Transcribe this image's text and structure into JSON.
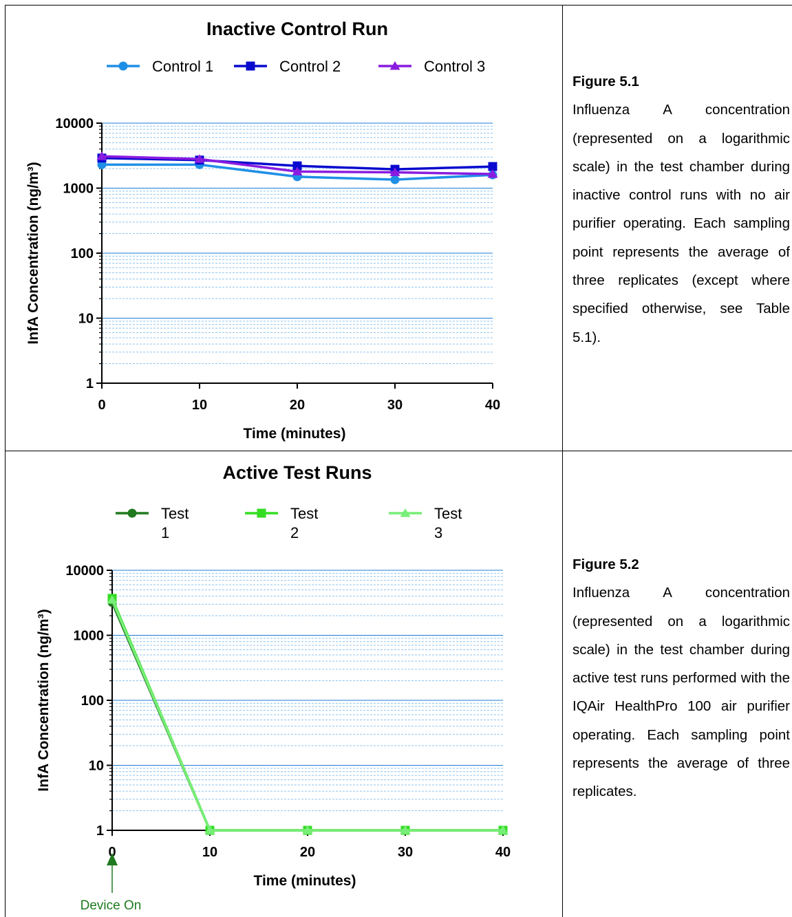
{
  "colors": {
    "control_1": "#1e8fe6",
    "control_2": "#0a0acf",
    "control_3": "#8a1ce0",
    "test_1": "#1f7a1f",
    "test_2": "#33dd22",
    "test_3": "#77ee77",
    "major_grid": "#1c7bd8",
    "minor_grid": "#8cc4f0",
    "annotation": "#1f7a1f"
  },
  "figure_1": {
    "label": "Figure 5.1",
    "caption": "Influenza A concentration (represented on a logarithmic scale) in the test chamber during inactive control runs with no air purifier operating. Each sampling point represents the average of three replicates (except where specified otherwise, see Table 5.1)."
  },
  "figure_2": {
    "label": "Figure 5.2",
    "caption": "Influenza A concentration (represented on a logarithmic scale) in the test chamber during active test runs performed with the IQAir HealthPro 100 air purifier operating. Each sampling point represents the average of three replicates."
  },
  "chart_data": [
    {
      "type": "line",
      "title": "Inactive Control Run",
      "xlabel": "Time (minutes)",
      "ylabel": "InfA Concentration (ng/m³)",
      "yscale": "log",
      "ylim": [
        1,
        10000
      ],
      "xlim": [
        0,
        40
      ],
      "x": [
        0,
        10,
        20,
        30,
        40
      ],
      "x_ticks": [
        "0",
        "10",
        "20",
        "30",
        "40"
      ],
      "y_ticks": [
        "1",
        "10",
        "100",
        "1000",
        "10000"
      ],
      "grid": true,
      "legend_position": "top",
      "series": [
        {
          "name": "Control 1",
          "marker": "circle",
          "values": [
            2300,
            2300,
            1500,
            1350,
            1600
          ]
        },
        {
          "name": "Control 2",
          "marker": "square",
          "values": [
            2900,
            2700,
            2200,
            1950,
            2150
          ]
        },
        {
          "name": "Control 3",
          "marker": "triangle",
          "values": [
            3100,
            2800,
            1800,
            1750,
            1650
          ]
        }
      ]
    },
    {
      "type": "line",
      "title": "Active Test Runs",
      "xlabel": "Time (minutes)",
      "ylabel": "InfA Concentration (ng/m³)",
      "yscale": "log",
      "ylim": [
        1,
        10000
      ],
      "xlim": [
        0,
        40
      ],
      "x": [
        0,
        10,
        20,
        30,
        40
      ],
      "x_ticks": [
        "0",
        "10",
        "20",
        "30",
        "40"
      ],
      "y_ticks": [
        "1",
        "10",
        "100",
        "1000",
        "10000"
      ],
      "grid": true,
      "legend_position": "top",
      "annotation": "Device On",
      "series": [
        {
          "name": "Test 1",
          "marker": "circle",
          "values": [
            3200,
            1,
            1,
            1,
            1
          ]
        },
        {
          "name": "Test 2",
          "marker": "square",
          "values": [
            3700,
            1,
            1,
            1,
            1
          ]
        },
        {
          "name": "Test 3",
          "marker": "triangle",
          "values": [
            3500,
            1,
            1,
            1,
            1
          ]
        }
      ]
    }
  ]
}
